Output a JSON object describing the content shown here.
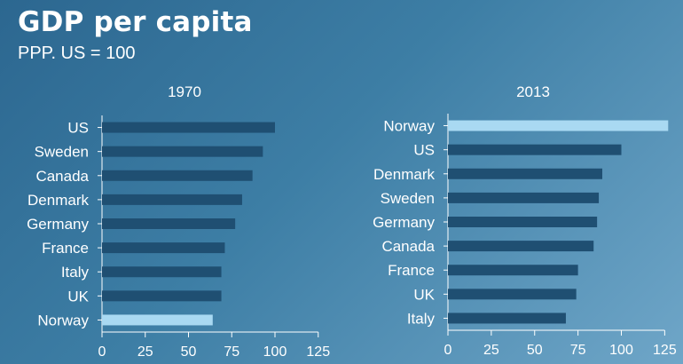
{
  "title": "GDP per capita",
  "subtitle": "PPP. US = 100",
  "colors": {
    "bar": "#1f4f72",
    "highlight": "#a9d9f2",
    "axis": "#ffffff"
  },
  "chart_data": [
    {
      "type": "bar",
      "orientation": "horizontal",
      "title": "1970",
      "categories": [
        "US",
        "Sweden",
        "Canada",
        "Denmark",
        "Germany",
        "France",
        "Italy",
        "UK",
        "Norway"
      ],
      "values": [
        100,
        93,
        87,
        81,
        77,
        71,
        69,
        69,
        64
      ],
      "highlight": "Norway",
      "xlim": [
        0,
        125
      ],
      "xticks": [
        0,
        25,
        50,
        75,
        100,
        125
      ],
      "grid": false
    },
    {
      "type": "bar",
      "orientation": "horizontal",
      "title": "2013",
      "categories": [
        "Norway",
        "US",
        "Denmark",
        "Sweden",
        "Germany",
        "Canada",
        "France",
        "UK",
        "Italy"
      ],
      "values": [
        127,
        100,
        89,
        87,
        86,
        84,
        75,
        74,
        68
      ],
      "highlight": "Norway",
      "xlim": [
        0,
        125
      ],
      "xticks": [
        0,
        25,
        50,
        75,
        100,
        125
      ],
      "grid": false
    }
  ]
}
